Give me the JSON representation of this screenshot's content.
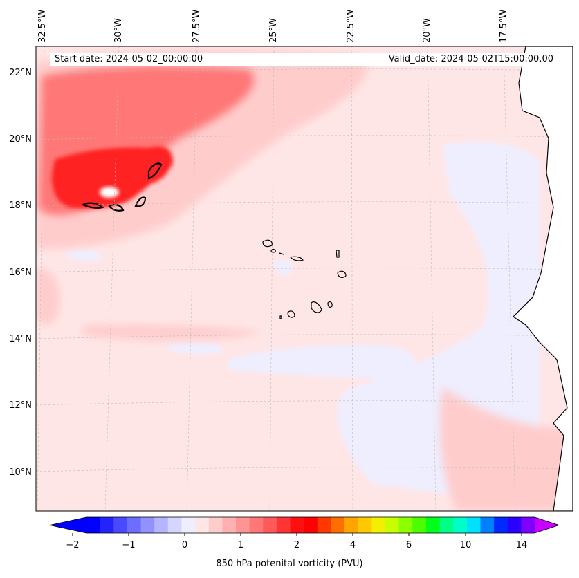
{
  "header": {
    "start_date": "Start date: 2024-05-02_00:00:00",
    "valid_date": "Valid_date: 2024-05-02T15:00:00.00"
  },
  "map": {
    "longitude_labels": [
      "32.5°W",
      "30°W",
      "27.5°W",
      "25°W",
      "22.5°W",
      "20°W",
      "17.5°W"
    ],
    "latitude_labels": [
      "22°N",
      "20°N",
      "18°N",
      "16°N",
      "14°N",
      "12°N",
      "10°N"
    ],
    "background_color": "#ffe6e6",
    "land_color": "#ffffff"
  },
  "colorbar": {
    "label": "850 hPa potenital vorticity (PVU)",
    "tick_labels": [
      "−2",
      "−1",
      "0",
      "1",
      "2",
      "4",
      "6",
      "10",
      "14"
    ],
    "colors": [
      "#0000ff",
      "#2323ff",
      "#4949ff",
      "#6d6dff",
      "#9191ff",
      "#b5b5ff",
      "#d5d5ff",
      "#eeeeff",
      "#ffe6e6",
      "#ffcccc",
      "#ffb0b0",
      "#ff9494",
      "#ff7777",
      "#ff5959",
      "#ff3434",
      "#ff1010",
      "#ff0000",
      "#ff3800",
      "#ff6f00",
      "#ffa500",
      "#ffc800",
      "#f0f000",
      "#c8ff00",
      "#8cff00",
      "#4bff00",
      "#00ff19",
      "#00ff86",
      "#00ffc8",
      "#00e1ff",
      "#0080ff",
      "#0028ff",
      "#2a00ff",
      "#8000ff"
    ],
    "min_extend_color": "#0000ff",
    "max_extend_color": "#c800ff"
  }
}
